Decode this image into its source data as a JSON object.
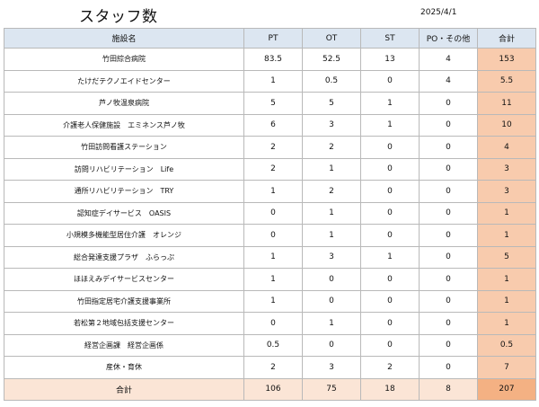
{
  "header": {
    "title": "スタッフ数",
    "date": "2025/4/1"
  },
  "table": {
    "columns": [
      "施設名",
      "PT",
      "OT",
      "ST",
      "PO・その他",
      "合計"
    ],
    "rows": [
      {
        "name": "竹田綜合病院",
        "pt": "83.5",
        "ot": "52.5",
        "st": "13",
        "po": "4",
        "total": "153"
      },
      {
        "name": "たけだテクノエイドセンター",
        "pt": "1",
        "ot": "0.5",
        "st": "0",
        "po": "4",
        "total": "5.5"
      },
      {
        "name": "芦ノ牧温泉病院",
        "pt": "5",
        "ot": "5",
        "st": "1",
        "po": "0",
        "total": "11"
      },
      {
        "name": "介護老人保健施設　エミネンス芦ノ牧",
        "pt": "6",
        "ot": "3",
        "st": "1",
        "po": "0",
        "total": "10"
      },
      {
        "name": "竹田訪問看護ステーション",
        "pt": "2",
        "ot": "2",
        "st": "0",
        "po": "0",
        "total": "4"
      },
      {
        "name": "訪問リハビリテーション　Life",
        "pt": "2",
        "ot": "1",
        "st": "0",
        "po": "0",
        "total": "3"
      },
      {
        "name": "通所リハビリテーション　TRY",
        "pt": "1",
        "ot": "2",
        "st": "0",
        "po": "0",
        "total": "3"
      },
      {
        "name": "認知症デイサービス　OASIS",
        "pt": "0",
        "ot": "1",
        "st": "0",
        "po": "0",
        "total": "1"
      },
      {
        "name": "小規模多機能型居住介護　オレンジ",
        "pt": "0",
        "ot": "1",
        "st": "0",
        "po": "0",
        "total": "1"
      },
      {
        "name": "総合発達支援プラザ　ふらっぷ",
        "pt": "1",
        "ot": "3",
        "st": "1",
        "po": "0",
        "total": "5"
      },
      {
        "name": "ほほえみデイサービスセンター",
        "pt": "1",
        "ot": "0",
        "st": "0",
        "po": "0",
        "total": "1"
      },
      {
        "name": "竹田指定居宅介護支援事業所",
        "pt": "1",
        "ot": "0",
        "st": "0",
        "po": "0",
        "total": "1"
      },
      {
        "name": "若松第２地域包括支援センター",
        "pt": "0",
        "ot": "1",
        "st": "0",
        "po": "0",
        "total": "1"
      },
      {
        "name": "経営企画課　経営企画係",
        "pt": "0.5",
        "ot": "0",
        "st": "0",
        "po": "0",
        "total": "0.5"
      },
      {
        "name": "産休・育休",
        "pt": "2",
        "ot": "3",
        "st": "2",
        "po": "0",
        "total": "7"
      }
    ],
    "sum": {
      "name": "合計",
      "pt": "106",
      "ot": "75",
      "st": "18",
      "po": "8",
      "total": "207"
    }
  },
  "colors": {
    "header_bg": "#dce6f1",
    "total_col_bg": "#f8cbad",
    "sum_row_bg": "#fbe5d6",
    "grand_total_bg": "#f4b183"
  }
}
